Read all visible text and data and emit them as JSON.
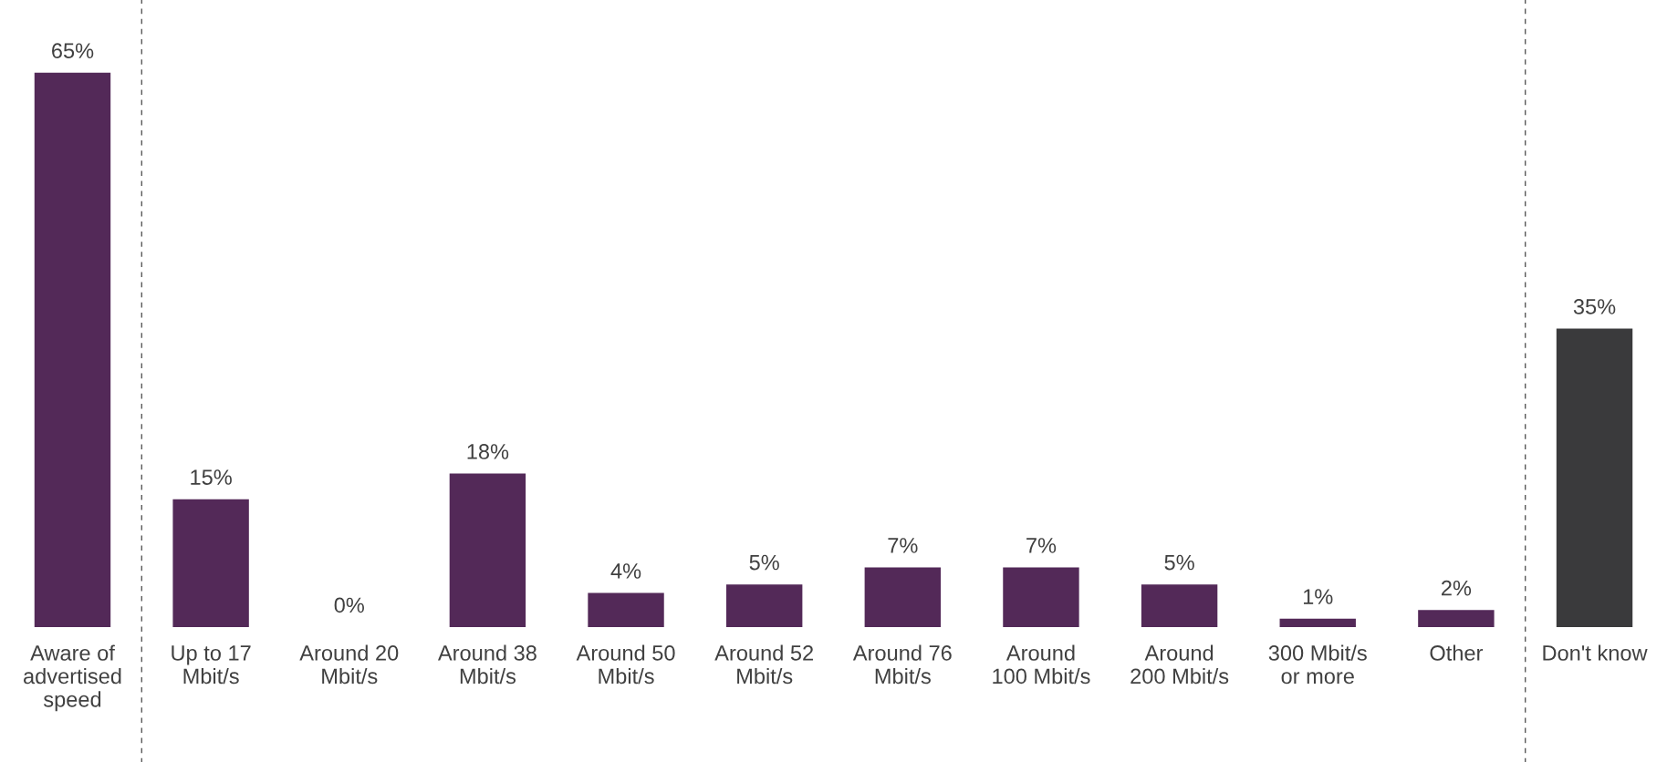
{
  "chart_data": {
    "type": "bar",
    "categories": [
      "Aware of\nadvertised\nspeed",
      "Up to 17\nMbit/s",
      "Around 20\nMbit/s",
      "Around 38\nMbit/s",
      "Around 50\nMbit/s",
      "Around 52\nMbit/s",
      "Around 76\nMbit/s",
      "Around\n100 Mbit/s",
      "Around\n200 Mbit/s",
      "300 Mbit/s\nor more",
      "Other",
      "Don't know"
    ],
    "values": [
      65,
      15,
      0,
      18,
      4,
      5,
      7,
      7,
      5,
      1,
      2,
      35
    ],
    "colors": [
      "#532958",
      "#532958",
      "#532958",
      "#532958",
      "#532958",
      "#532958",
      "#532958",
      "#532958",
      "#532958",
      "#532958",
      "#532958",
      "#3a3a3c"
    ],
    "value_labels": [
      "65%",
      "15%",
      "0%",
      "18%",
      "4%",
      "5%",
      "7%",
      "7%",
      "5%",
      "1%",
      "2%",
      "35%"
    ],
    "grid": false,
    "legend": false
  }
}
